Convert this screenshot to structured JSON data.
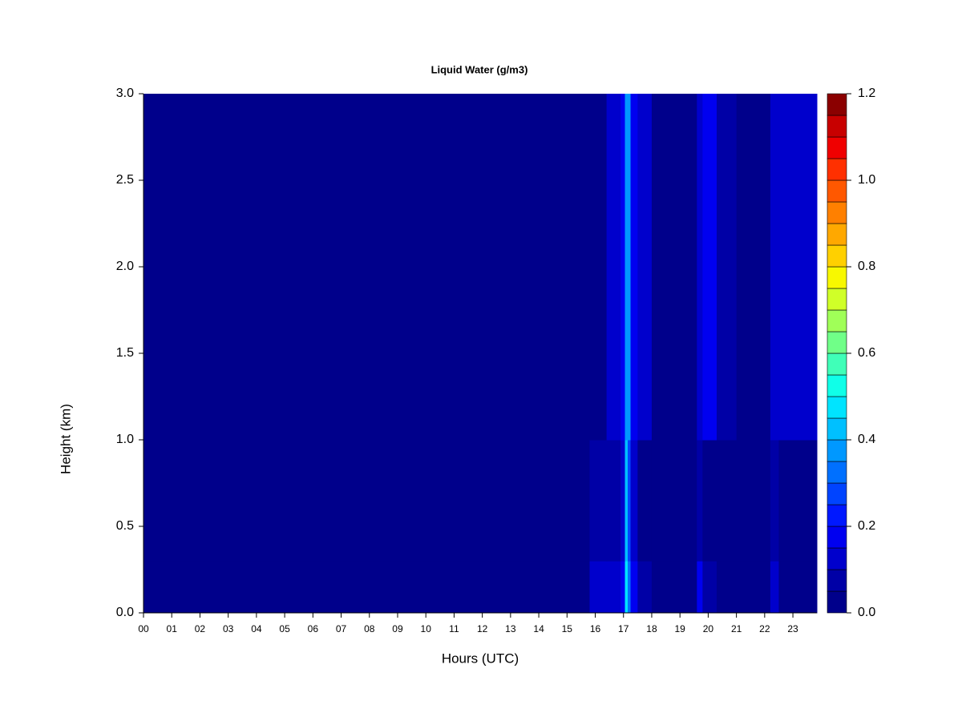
{
  "chart_data": {
    "type": "heatmap",
    "title": "Liquid Water (g/m3)",
    "xlabel": "Hours (UTC)",
    "ylabel": "Height (km)",
    "xlim": [
      0,
      23.85
    ],
    "ylim": [
      0,
      3
    ],
    "xticks": [
      {
        "value": 0,
        "label": "00"
      },
      {
        "value": 1,
        "label": "01"
      },
      {
        "value": 2,
        "label": "02"
      },
      {
        "value": 3,
        "label": "03"
      },
      {
        "value": 4,
        "label": "04"
      },
      {
        "value": 5,
        "label": "05"
      },
      {
        "value": 6,
        "label": "06"
      },
      {
        "value": 7,
        "label": "07"
      },
      {
        "value": 8,
        "label": "08"
      },
      {
        "value": 9,
        "label": "09"
      },
      10,
      11,
      12,
      13,
      14,
      15,
      16,
      17,
      18,
      19,
      20,
      21,
      22,
      23
    ],
    "yticks": [
      {
        "value": 0,
        "label": "0.0"
      },
      {
        "value": 0.5,
        "label": "0.5"
      },
      {
        "value": 1,
        "label": "1.0"
      },
      {
        "value": 1.5,
        "label": "1.5"
      },
      {
        "value": 2,
        "label": "2.0"
      },
      {
        "value": 2.5,
        "label": "2.5"
      },
      {
        "value": 3,
        "label": "3.0"
      }
    ],
    "xbins": [
      0,
      9.2,
      9.6,
      15.8,
      16.4,
      16.9,
      17.05,
      17.15,
      17.25,
      17.5,
      18.0,
      19.6,
      19.8,
      20.3,
      21.0,
      22.2,
      22.5,
      23.85
    ],
    "ybins": [
      0,
      0.3,
      1.0,
      3.0
    ],
    "z": [
      [
        0.01,
        0.03,
        0.01,
        0.1,
        0.12,
        0.15,
        0.45,
        0.3,
        0.15,
        0.06,
        0.02,
        0.15,
        0.06,
        0.04,
        0.02,
        0.12,
        0.03
      ],
      [
        0.01,
        0.01,
        0.01,
        0.07,
        0.08,
        0.12,
        0.4,
        0.25,
        0.1,
        0.04,
        0.02,
        0.08,
        0.04,
        0.03,
        0.02,
        0.06,
        0.02
      ],
      [
        0.01,
        0.01,
        0.01,
        0.04,
        0.1,
        0.15,
        0.35,
        0.35,
        0.15,
        0.1,
        0.03,
        0.12,
        0.15,
        0.08,
        0.03,
        0.12,
        0.1
      ]
    ],
    "levels": [
      0,
      0.05,
      0.1,
      0.15,
      0.2,
      0.25,
      0.3,
      0.35,
      0.4,
      0.45,
      0.5,
      0.55,
      0.6,
      0.65,
      0.7,
      0.75,
      0.8,
      0.85,
      0.9,
      0.95,
      1.0,
      1.05,
      1.1,
      1.15,
      1.2
    ],
    "colors": [
      "#00008b",
      "#0000a6",
      "#0000cc",
      "#0000f0",
      "#0018ff",
      "#0044ff",
      "#0070ff",
      "#0098ff",
      "#00c0ff",
      "#00e4ff",
      "#10ffe8",
      "#40ffb8",
      "#70ff88",
      "#a0ff58",
      "#d0ff28",
      "#f8f800",
      "#ffd000",
      "#ffa800",
      "#ff8000",
      "#ff5800",
      "#ff3000",
      "#f00000",
      "#c80000",
      "#8b0000"
    ],
    "cticks": [
      {
        "value": 0,
        "label": "0.0"
      },
      {
        "value": 0.2,
        "label": "0.2"
      },
      {
        "value": 0.4,
        "label": "0.4"
      },
      {
        "value": 0.6,
        "label": "0.6"
      },
      {
        "value": 0.8,
        "label": "0.8"
      },
      {
        "value": 1.0,
        "label": "1.0"
      },
      {
        "value": 1.2,
        "label": "1.2"
      }
    ]
  }
}
